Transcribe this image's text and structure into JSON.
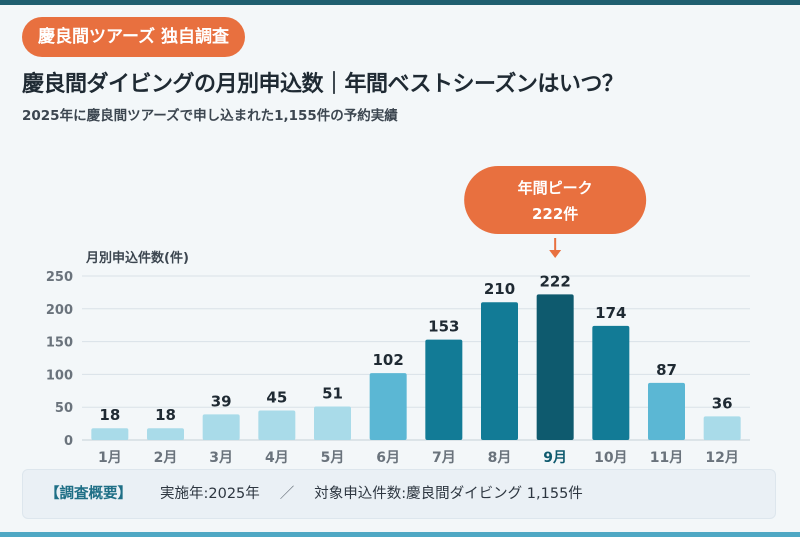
{
  "badge": "慶良間ツアーズ 独自調査",
  "title": "慶良間ダイビングの月別申込数｜年間ベストシーズンはいつ？",
  "subtitle": "2025年に慶良間ツアーズで申し込まれた1,155件の予約実績",
  "summary": {
    "label": "【調査概要】",
    "year": "実施年:2025年",
    "separator": "／",
    "count": "対象申込件数:慶良間ダイビング 1,155件"
  },
  "chart_data": {
    "type": "bar",
    "ylabel": "月別申込件数(件)",
    "ylim": [
      0,
      250
    ],
    "yticks": [
      0,
      50,
      100,
      150,
      200,
      250
    ],
    "grid": true,
    "categories": [
      "1月",
      "2月",
      "3月",
      "4月",
      "5月",
      "6月",
      "7月",
      "8月",
      "9月",
      "10月",
      "11月",
      "12月"
    ],
    "values": [
      18,
      18,
      39,
      45,
      51,
      102,
      153,
      210,
      222,
      174,
      87,
      36
    ],
    "bar_colors": [
      "#a9dbe9",
      "#a9dbe9",
      "#a9dbe9",
      "#a9dbe9",
      "#a9dbe9",
      "#5bb7d4",
      "#127b96",
      "#127b96",
      "#0e5a6e",
      "#127b96",
      "#5bb7d4",
      "#a9dbe9"
    ],
    "highlight_index": 8,
    "callout": {
      "line1": "年間ピーク",
      "line2": "222件"
    },
    "colors": {
      "callout": "#e8703f",
      "text": "#1f2a33",
      "axis": "#6a737c",
      "grid": "#d9e2e8",
      "highlight_label": "#0e5a6e"
    }
  }
}
